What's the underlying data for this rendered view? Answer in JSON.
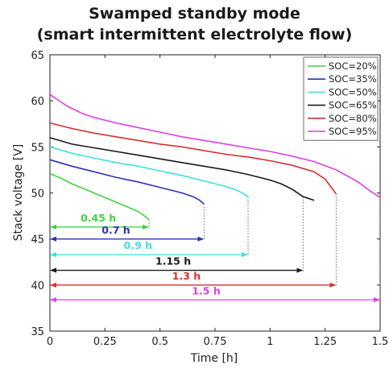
{
  "chart_data": {
    "type": "line",
    "title_line1": "Swamped standby mode",
    "title_line2": "(smart intermittent electrolyte flow)",
    "xlabel": "Time [h]",
    "ylabel": "Stack voltage [V]",
    "xlim": [
      0,
      1.5
    ],
    "ylim": [
      35,
      65
    ],
    "xticks": [
      0,
      0.25,
      0.5,
      0.75,
      1,
      1.25,
      1.5
    ],
    "yticks": [
      35,
      40,
      45,
      50,
      55,
      60,
      65
    ],
    "xtick_labels": [
      "0",
      "0.25",
      "0.5",
      "0.75",
      "1",
      "1.25",
      "1.5"
    ],
    "ytick_labels": [
      "35",
      "40",
      "45",
      "50",
      "55",
      "60",
      "65"
    ],
    "grid": false,
    "legend_position": "top-right",
    "series": [
      {
        "name": "SOC=20%",
        "color": "#3fd43f",
        "points": [
          [
            0,
            52.1
          ],
          [
            0.05,
            51.6
          ],
          [
            0.1,
            51.0
          ],
          [
            0.15,
            50.5
          ],
          [
            0.2,
            50.0
          ],
          [
            0.25,
            49.5
          ],
          [
            0.3,
            49.0
          ],
          [
            0.35,
            48.5
          ],
          [
            0.4,
            48.0
          ],
          [
            0.43,
            47.5
          ],
          [
            0.45,
            47.1
          ]
        ]
      },
      {
        "name": "SOC=35%",
        "color": "#3030b0",
        "points": [
          [
            0,
            53.6
          ],
          [
            0.1,
            52.9
          ],
          [
            0.2,
            52.3
          ],
          [
            0.3,
            51.7
          ],
          [
            0.4,
            51.2
          ],
          [
            0.5,
            50.6
          ],
          [
            0.6,
            50.0
          ],
          [
            0.65,
            49.6
          ],
          [
            0.68,
            49.2
          ],
          [
            0.7,
            48.8
          ]
        ]
      },
      {
        "name": "SOC=50%",
        "color": "#3fe0e0",
        "points": [
          [
            0,
            55.0
          ],
          [
            0.1,
            54.3
          ],
          [
            0.2,
            53.8
          ],
          [
            0.3,
            53.3
          ],
          [
            0.4,
            52.9
          ],
          [
            0.5,
            52.4
          ],
          [
            0.6,
            51.9
          ],
          [
            0.7,
            51.3
          ],
          [
            0.8,
            50.7
          ],
          [
            0.85,
            50.3
          ],
          [
            0.88,
            49.9
          ],
          [
            0.9,
            49.6
          ]
        ]
      },
      {
        "name": "SOC=65%",
        "color": "#1a1a1a",
        "points": [
          [
            0,
            56.0
          ],
          [
            0.1,
            55.3
          ],
          [
            0.2,
            54.9
          ],
          [
            0.3,
            54.5
          ],
          [
            0.4,
            54.1
          ],
          [
            0.5,
            53.7
          ],
          [
            0.6,
            53.3
          ],
          [
            0.7,
            52.9
          ],
          [
            0.8,
            52.5
          ],
          [
            0.9,
            52.0
          ],
          [
            1.0,
            51.4
          ],
          [
            1.05,
            51.0
          ],
          [
            1.1,
            50.4
          ],
          [
            1.15,
            49.6
          ],
          [
            1.2,
            49.2
          ]
        ]
      },
      {
        "name": "SOC=80%",
        "color": "#d63030",
        "points": [
          [
            0,
            57.6
          ],
          [
            0.1,
            57.0
          ],
          [
            0.2,
            56.5
          ],
          [
            0.3,
            56.1
          ],
          [
            0.4,
            55.7
          ],
          [
            0.5,
            55.3
          ],
          [
            0.6,
            55.0
          ],
          [
            0.7,
            54.6
          ],
          [
            0.8,
            54.2
          ],
          [
            0.9,
            53.9
          ],
          [
            1.0,
            53.5
          ],
          [
            1.1,
            53.0
          ],
          [
            1.2,
            52.3
          ],
          [
            1.25,
            51.5
          ],
          [
            1.3,
            49.9
          ]
        ]
      },
      {
        "name": "SOC=95%",
        "color": "#e040e0",
        "points": [
          [
            0,
            60.7
          ],
          [
            0.03,
            60.2
          ],
          [
            0.08,
            59.4
          ],
          [
            0.15,
            58.6
          ],
          [
            0.2,
            58.2
          ],
          [
            0.3,
            57.6
          ],
          [
            0.4,
            57.1
          ],
          [
            0.5,
            56.6
          ],
          [
            0.6,
            56.1
          ],
          [
            0.7,
            55.7
          ],
          [
            0.8,
            55.3
          ],
          [
            0.9,
            54.9
          ],
          [
            1.0,
            54.5
          ],
          [
            1.1,
            54.0
          ],
          [
            1.2,
            53.4
          ],
          [
            1.3,
            52.5
          ],
          [
            1.4,
            51.2
          ],
          [
            1.45,
            50.3
          ],
          [
            1.5,
            49.5
          ]
        ]
      }
    ],
    "annotations": [
      {
        "label": "0.45 h",
        "end": 0.45,
        "y": 46.3,
        "color": "#3fd43f",
        "text_x": 0.22,
        "text_y": 46.9,
        "vline_top": 47.1
      },
      {
        "label": "0.7 h",
        "end": 0.7,
        "y": 45.0,
        "color": "#3030b0",
        "text_x": 0.3,
        "text_y": 45.6,
        "vline_top": 48.8
      },
      {
        "label": "0.9 h",
        "end": 0.9,
        "y": 43.3,
        "color": "#3fe0e0",
        "text_x": 0.4,
        "text_y": 43.9,
        "vline_top": 49.6
      },
      {
        "label": "1.15 h",
        "end": 1.15,
        "y": 41.6,
        "color": "#1a1a1a",
        "text_x": 0.56,
        "text_y": 42.2,
        "vline_top": 49.6
      },
      {
        "label": "1.3 h",
        "end": 1.3,
        "y": 40.0,
        "color": "#d63030",
        "text_x": 0.62,
        "text_y": 40.6,
        "vline_top": 49.9
      },
      {
        "label": "1.5 h",
        "end": 1.5,
        "y": 38.4,
        "color": "#e040e0",
        "text_x": 0.71,
        "text_y": 39.0,
        "vline_top": 49.5
      }
    ]
  }
}
